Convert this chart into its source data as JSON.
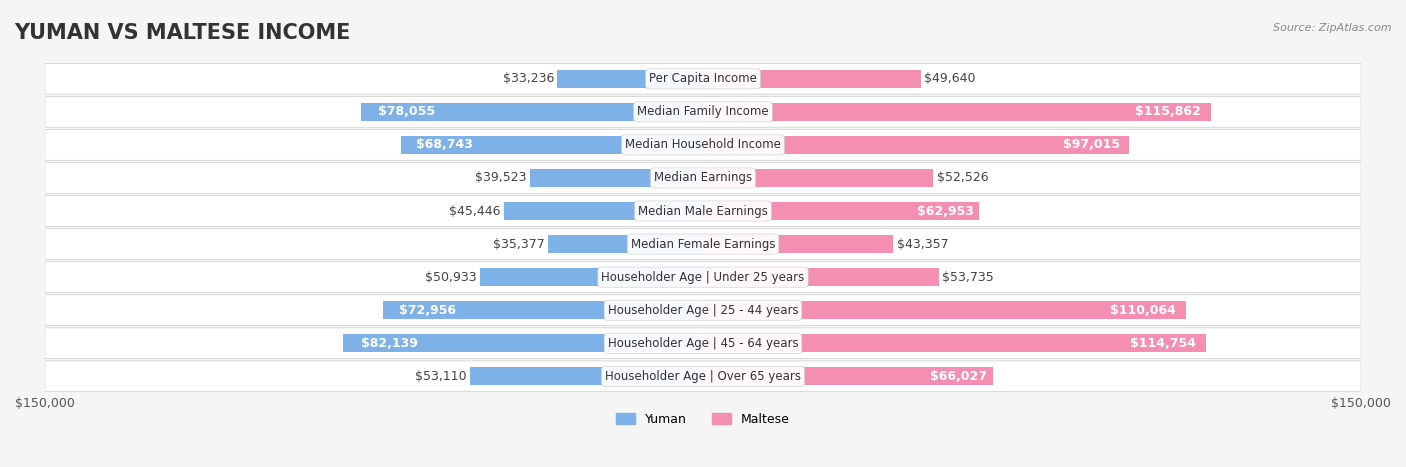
{
  "title": "YUMAN VS MALTESE INCOME",
  "source": "Source: ZipAtlas.com",
  "categories": [
    "Per Capita Income",
    "Median Family Income",
    "Median Household Income",
    "Median Earnings",
    "Median Male Earnings",
    "Median Female Earnings",
    "Householder Age | Under 25 years",
    "Householder Age | 25 - 44 years",
    "Householder Age | 45 - 64 years",
    "Householder Age | Over 65 years"
  ],
  "yuman_values": [
    33236,
    78055,
    68743,
    39523,
    45446,
    35377,
    50933,
    72956,
    82139,
    53110
  ],
  "maltese_values": [
    49640,
    115862,
    97015,
    52526,
    62953,
    43357,
    53735,
    110064,
    114754,
    66027
  ],
  "yuman_labels": [
    "$33,236",
    "$78,055",
    "$68,743",
    "$39,523",
    "$45,446",
    "$35,377",
    "$50,933",
    "$72,956",
    "$82,139",
    "$53,110"
  ],
  "maltese_labels": [
    "$49,640",
    "$115,862",
    "$97,015",
    "$52,526",
    "$62,953",
    "$43,357",
    "$53,735",
    "$110,064",
    "$114,754",
    "$66,027"
  ],
  "yuman_color": "#7EB1E8",
  "maltese_color": "#F48FB1",
  "yuman_color_dark": "#5B9BD5",
  "maltese_color_dark": "#F06292",
  "bg_color": "#f5f5f5",
  "row_bg": "#ffffff",
  "max_value": 150000,
  "legend_yuman": "Yuman",
  "legend_maltese": "Maltese",
  "title_fontsize": 15,
  "label_fontsize": 9,
  "category_fontsize": 8.5
}
